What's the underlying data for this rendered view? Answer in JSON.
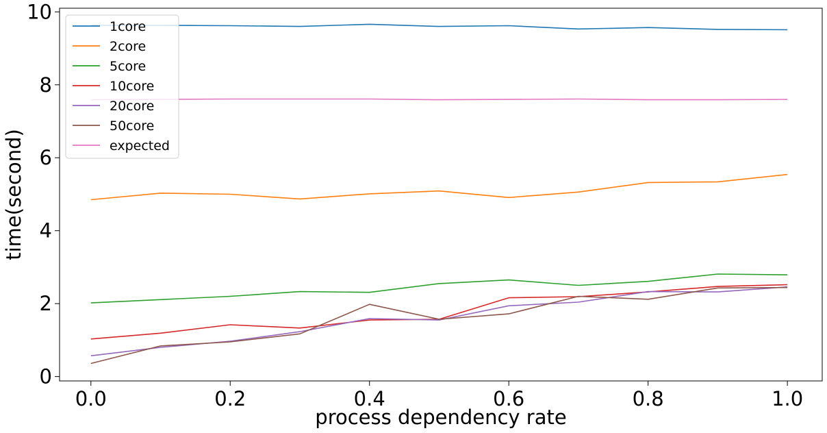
{
  "chart_data": {
    "type": "line",
    "title": "",
    "xlabel": "process dependency rate",
    "ylabel": "time(second)",
    "xlim": [
      -0.045,
      1.05
    ],
    "ylim": [
      -0.12,
      10.1
    ],
    "x_ticks": [
      "0.0",
      "0.2",
      "0.4",
      "0.6",
      "0.8",
      "1.0"
    ],
    "y_ticks": [
      "0",
      "2",
      "4",
      "6",
      "8",
      "10"
    ],
    "x": [
      0.0,
      0.1,
      0.2,
      0.3,
      0.4,
      0.5,
      0.6,
      0.7,
      0.8,
      0.9,
      1.0
    ],
    "grid": false,
    "legend_position": "upper-left",
    "series": [
      {
        "name": "1core",
        "color": "#1f77b4",
        "values": [
          9.63,
          9.63,
          9.62,
          9.6,
          9.66,
          9.6,
          9.62,
          9.53,
          9.57,
          9.52,
          9.51
        ]
      },
      {
        "name": "2core",
        "color": "#ff7f0e",
        "values": [
          4.85,
          5.03,
          5.0,
          4.87,
          5.01,
          5.09,
          4.91,
          5.06,
          5.32,
          5.34,
          5.54
        ]
      },
      {
        "name": "5core",
        "color": "#2ca02c",
        "values": [
          2.02,
          2.11,
          2.2,
          2.33,
          2.31,
          2.55,
          2.65,
          2.5,
          2.61,
          2.81,
          2.79
        ]
      },
      {
        "name": "10core",
        "color": "#d62728",
        "values": [
          1.03,
          1.19,
          1.42,
          1.33,
          1.55,
          1.57,
          2.16,
          2.19,
          2.32,
          2.47,
          2.52
        ]
      },
      {
        "name": "20core",
        "color": "#9467bd",
        "values": [
          0.57,
          0.8,
          0.97,
          1.23,
          1.59,
          1.55,
          1.94,
          2.04,
          2.33,
          2.32,
          2.46
        ]
      },
      {
        "name": "50core",
        "color": "#8c564b",
        "values": [
          0.36,
          0.84,
          0.95,
          1.17,
          1.98,
          1.57,
          1.72,
          2.2,
          2.12,
          2.43,
          2.44
        ]
      },
      {
        "name": "expected",
        "color": "#e377c2",
        "values": [
          7.59,
          7.6,
          7.61,
          7.61,
          7.61,
          7.59,
          7.6,
          7.61,
          7.59,
          7.59,
          7.6
        ]
      }
    ]
  }
}
